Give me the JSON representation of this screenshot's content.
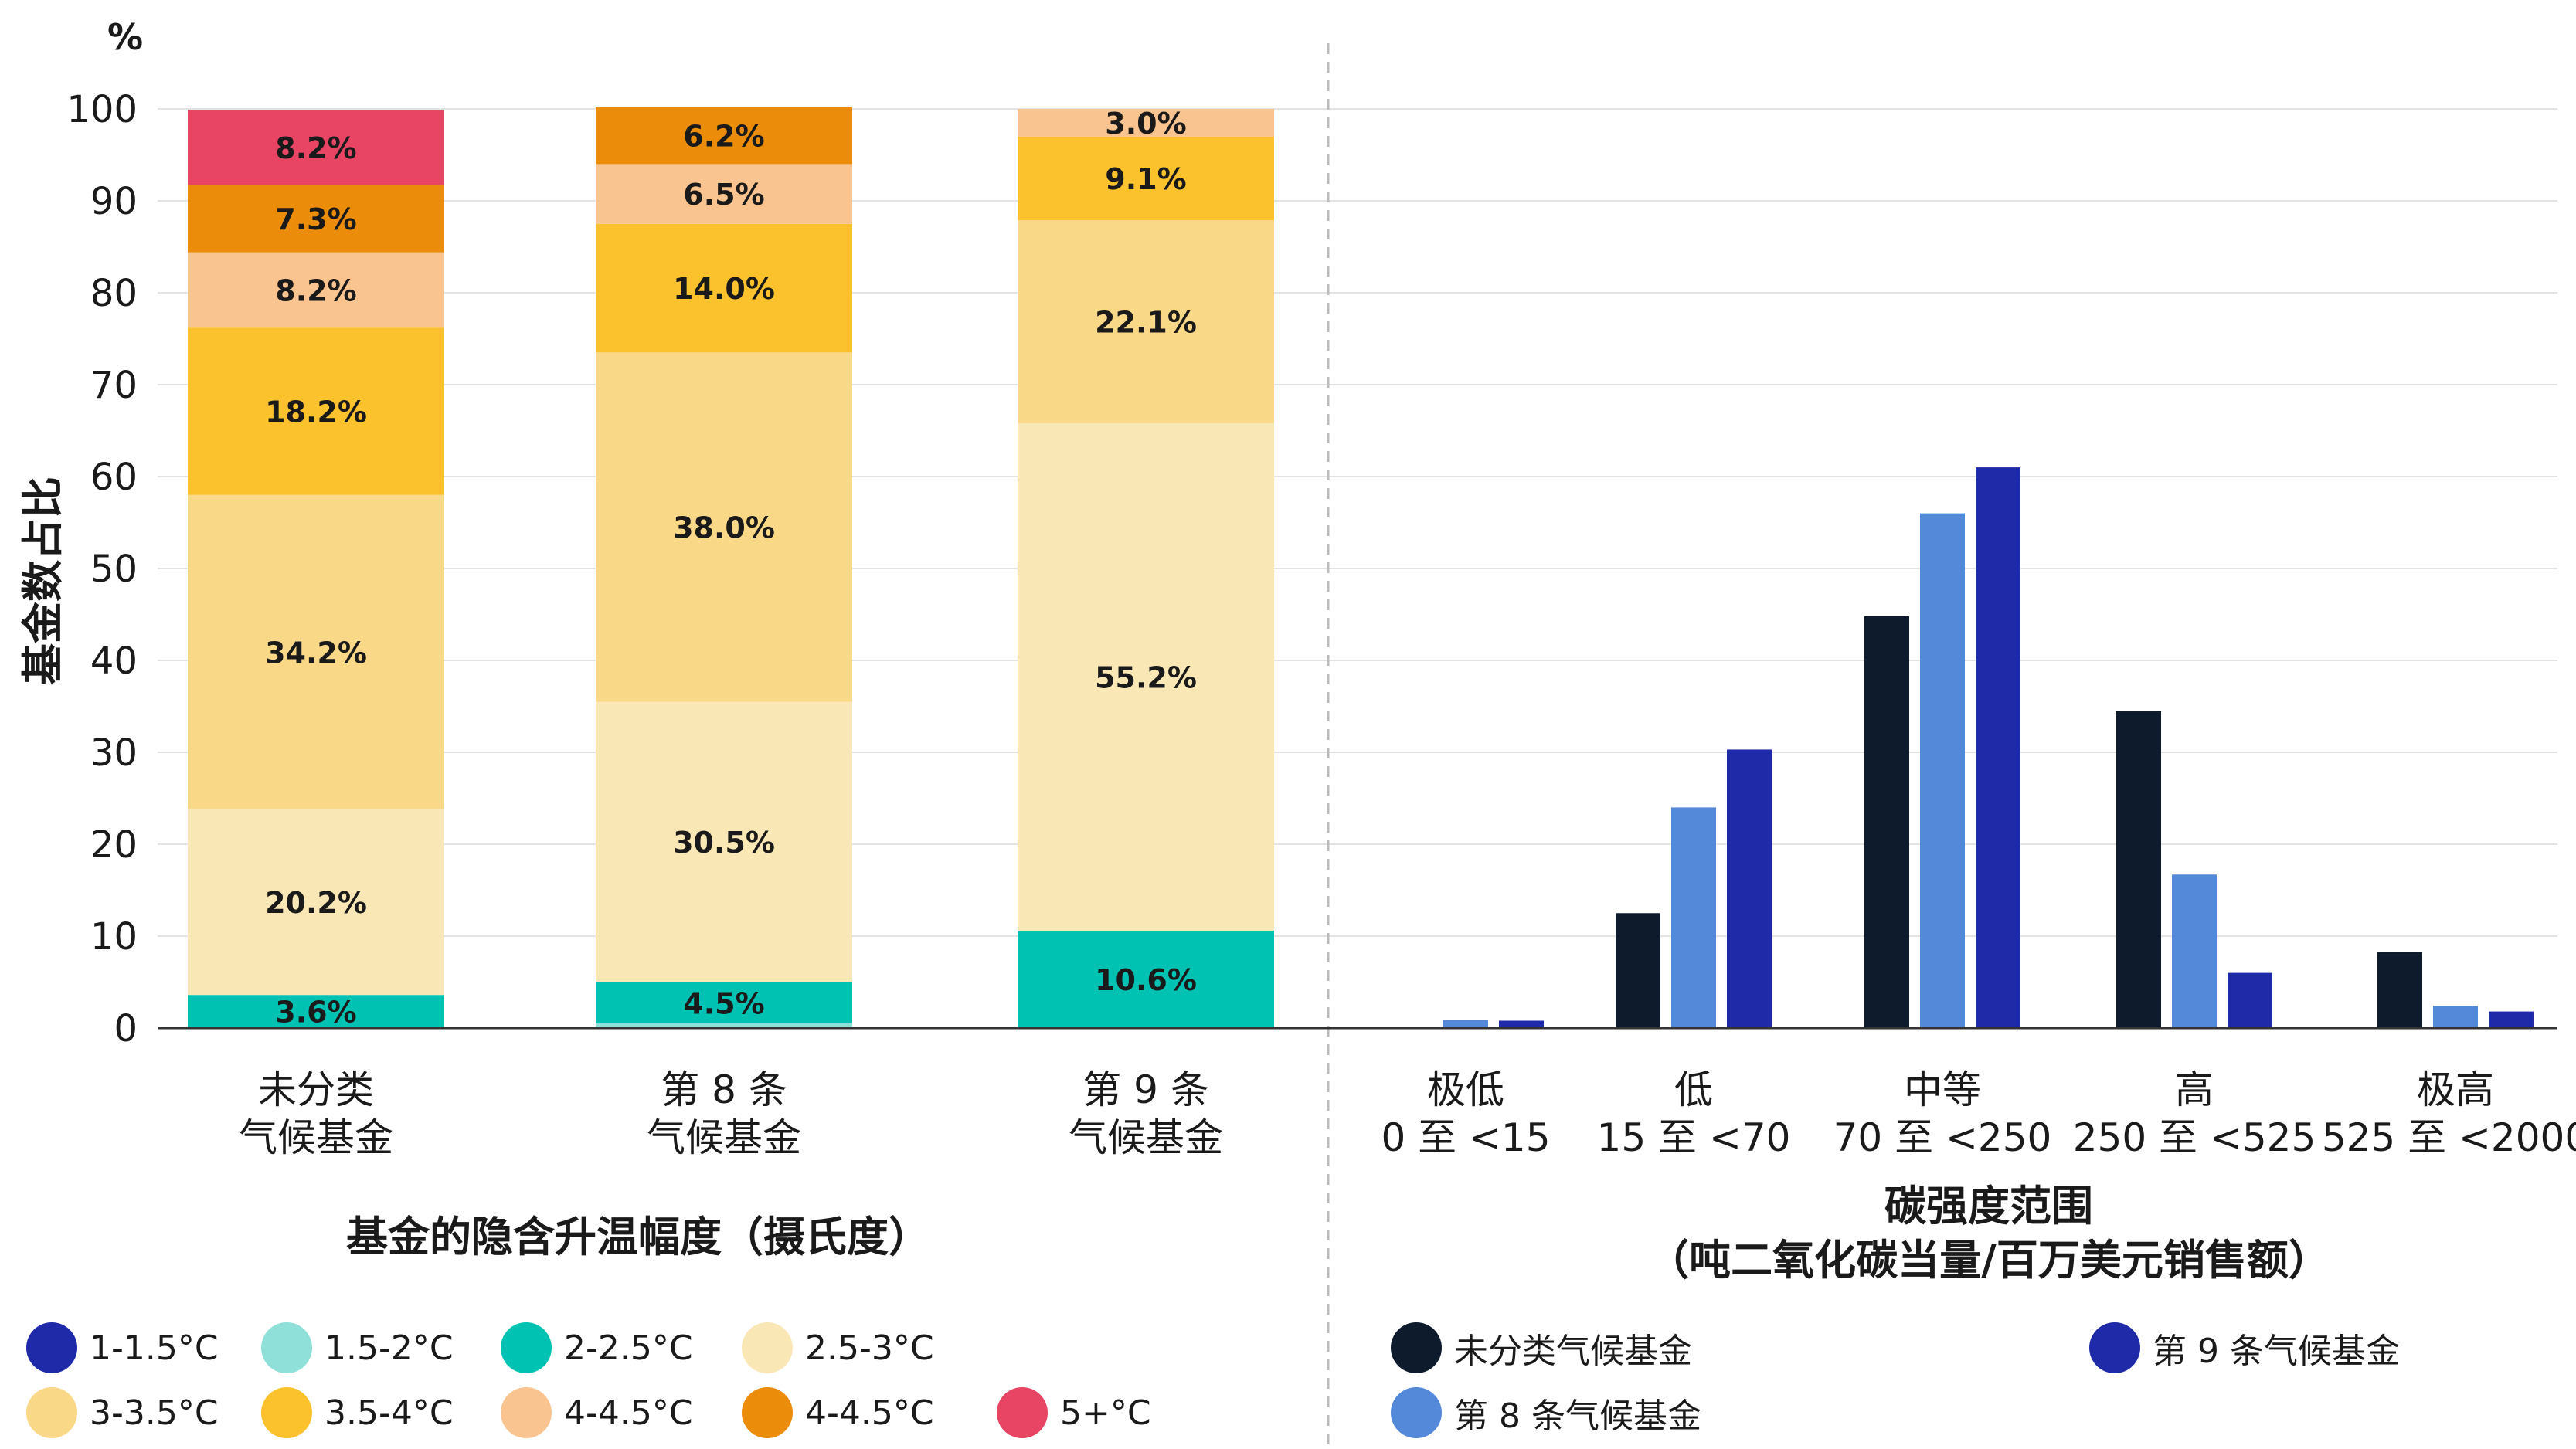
{
  "y_unit": "%",
  "y_axis_label": "基金数占比",
  "left_section_title": "基金的隐含升温幅度（摄氏度）",
  "right_section_title_line1": "碳强度范围",
  "right_section_title_line2": "（吨二氧化碳当量/百万美元销售额）",
  "chart_data": [
    {
      "type": "bar",
      "stacked": true,
      "ylim": [
        0,
        100
      ],
      "yticks": [
        0,
        10,
        20,
        30,
        40,
        50,
        60,
        70,
        80,
        90,
        100
      ],
      "ylabel": "基金数占比",
      "xlabel": "基金的隐含升温幅度（摄氏度）",
      "categories": [
        [
          "未分类",
          "气候基金"
        ],
        [
          "第 8 条",
          "气候基金"
        ],
        [
          "第 9 条",
          "气候基金"
        ]
      ],
      "series": [
        {
          "name": "1-1.5°C",
          "color": "#1f2aa8",
          "values": [
            0.0,
            0.0,
            0.0
          ],
          "labels": [
            "",
            "",
            ""
          ]
        },
        {
          "name": "1.5-2°C",
          "color": "#8ee0d8",
          "values": [
            0.0,
            0.5,
            0.0
          ],
          "labels": [
            "",
            "",
            ""
          ]
        },
        {
          "name": "2-2.5°C",
          "color": "#00c2b3",
          "values": [
            3.6,
            4.5,
            10.6
          ],
          "labels": [
            "3.6%",
            "4.5%",
            "10.6%"
          ]
        },
        {
          "name": "2.5-3°C",
          "color": "#f9e8b6",
          "values": [
            20.2,
            30.5,
            55.2
          ],
          "labels": [
            "20.2%",
            "30.5%",
            "55.2%"
          ]
        },
        {
          "name": "3-3.5°C",
          "color": "#f9d888",
          "values": [
            34.2,
            38.0,
            22.1
          ],
          "labels": [
            "34.2%",
            "38.0%",
            "22.1%"
          ]
        },
        {
          "name": "3.5-4°C",
          "color": "#fbc22e",
          "values": [
            18.2,
            14.0,
            9.1
          ],
          "labels": [
            "18.2%",
            "14.0%",
            "9.1%"
          ]
        },
        {
          "name": "4-4.5°C",
          "color": "#f9c490",
          "values": [
            8.2,
            6.5,
            3.0
          ],
          "labels": [
            "8.2%",
            "6.5%",
            "3.0%"
          ]
        },
        {
          "name": "4-4.5°C",
          "color": "#ec8c0b",
          "values": [
            7.3,
            6.2,
            0.0
          ],
          "labels": [
            "7.3%",
            "6.2%",
            ""
          ]
        },
        {
          "name": "5+°C",
          "color": "#e84565",
          "values": [
            8.2,
            0.0,
            0.0
          ],
          "labels": [
            "8.2%",
            "",
            ""
          ]
        }
      ]
    },
    {
      "type": "bar",
      "stacked": false,
      "ylim": [
        0,
        100
      ],
      "xlabel": "碳强度范围（吨二氧化碳当量/百万美元销售额）",
      "categories": [
        [
          "极低",
          "0 至 <15"
        ],
        [
          "低",
          "15 至 <70"
        ],
        [
          "中等",
          "70 至 <250"
        ],
        [
          "高",
          "250 至 <525"
        ],
        [
          "极高",
          "525 至 <2000"
        ]
      ],
      "series": [
        {
          "name": "未分类气候基金",
          "color": "#0e1b2c",
          "values": [
            0.0,
            12.5,
            44.8,
            34.5,
            8.3
          ]
        },
        {
          "name": "第 8 条气候基金",
          "color": "#5389d8",
          "values": [
            0.9,
            24.0,
            56.0,
            16.7,
            2.4
          ]
        },
        {
          "name": "第 9 条气候基金",
          "color": "#1f2aa8",
          "values": [
            0.8,
            30.3,
            61.0,
            6.0,
            1.8
          ]
        }
      ]
    }
  ],
  "legend_left": [
    {
      "label": "1-1.5°C",
      "color": "#1f2aa8"
    },
    {
      "label": "1.5-2°C",
      "color": "#8ee0d8"
    },
    {
      "label": "2-2.5°C",
      "color": "#00c2b3"
    },
    {
      "label": "2.5-3°C",
      "color": "#f9e8b6"
    },
    {
      "label": "3-3.5°C",
      "color": "#f9d888"
    },
    {
      "label": "3.5-4°C",
      "color": "#fbc22e"
    },
    {
      "label": "4-4.5°C",
      "color": "#f9c490"
    },
    {
      "label": "4-4.5°C",
      "color": "#ec8c0b"
    },
    {
      "label": "5+°C",
      "color": "#e84565"
    }
  ],
  "legend_right": [
    {
      "label": "未分类气候基金",
      "color": "#0e1b2c"
    },
    {
      "label": "第 9 条气候基金",
      "color": "#1f2aa8"
    },
    {
      "label": "第 8 条气候基金",
      "color": "#5389d8"
    }
  ]
}
